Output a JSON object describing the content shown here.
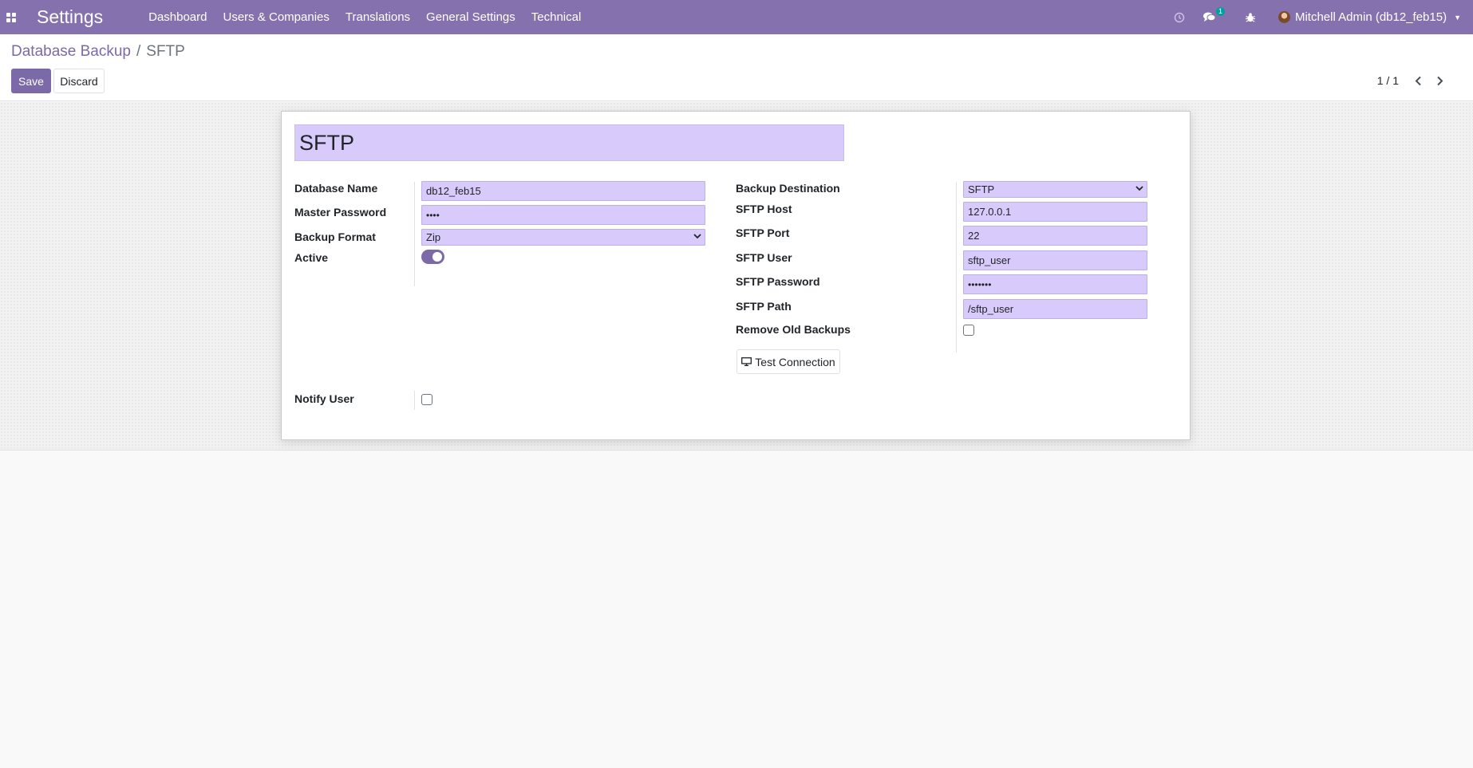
{
  "navbar": {
    "app_title": "Settings",
    "menu": [
      "Dashboard",
      "Users & Companies",
      "Translations",
      "General Settings",
      "Technical"
    ],
    "chat_badge": "1",
    "user": "Mitchell Admin (db12_feb15)"
  },
  "breadcrumb": {
    "parent": "Database Backup",
    "separator": "/",
    "current": "SFTP"
  },
  "buttons": {
    "save": "Save",
    "discard": "Discard",
    "test_connection": "Test Connection"
  },
  "pager": {
    "value": "1 / 1"
  },
  "form": {
    "name": "SFTP",
    "database_name": {
      "label": "Database Name",
      "value": "db12_feb15"
    },
    "master_password": {
      "label": "Master Password",
      "value": "••••"
    },
    "backup_format": {
      "label": "Backup Format",
      "value": "Zip"
    },
    "active": {
      "label": "Active",
      "value": true
    },
    "backup_destination": {
      "label": "Backup Destination",
      "value": "SFTP"
    },
    "sftp_host": {
      "label": "SFTP Host",
      "value": "127.0.0.1"
    },
    "sftp_port": {
      "label": "SFTP Port",
      "value": "22"
    },
    "sftp_user": {
      "label": "SFTP User",
      "value": "sftp_user"
    },
    "sftp_password": {
      "label": "SFTP Password",
      "value": "•••••••"
    },
    "sftp_path": {
      "label": "SFTP Path",
      "value": "/sftp_user"
    },
    "remove_old_backups": {
      "label": "Remove Old Backups",
      "value": false
    },
    "notify_user": {
      "label": "Notify User",
      "value": false
    }
  },
  "colors": {
    "navbar": "#8571ad",
    "primary": "#7c6aa8",
    "input_bg": "#d8cbfb",
    "badge": "#00a09d"
  },
  "icons": {
    "apps": "apps-grid-icon",
    "clock": "clock-icon",
    "chat": "chat-icon",
    "debug": "bug-icon",
    "prev": "chevron-left-icon",
    "next": "chevron-right-icon",
    "test": "monitor-icon"
  }
}
